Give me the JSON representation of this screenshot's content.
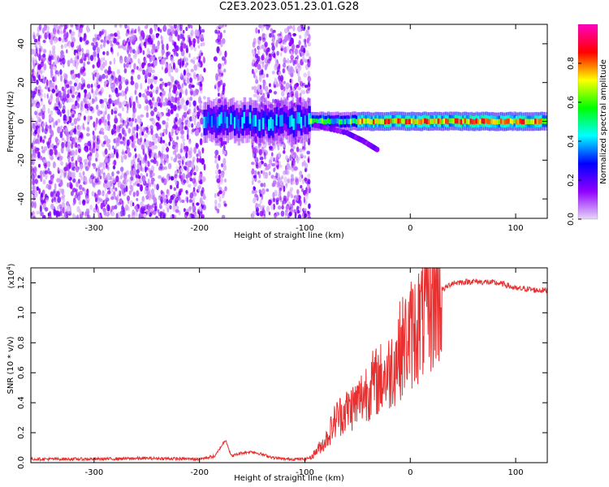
{
  "title": "C2E3.2023.051.23.01.G28",
  "chart_data": [
    {
      "type": "heatmap",
      "name": "spectrogram",
      "xlabel": "Height of straight line (km)",
      "ylabel": "Frequency (Hz)",
      "xlim": [
        -360,
        130
      ],
      "ylim": [
        -50,
        50
      ],
      "xticks": [
        -300,
        -200,
        -100,
        0,
        100
      ],
      "yticks": [
        -40,
        -20,
        0,
        20,
        40
      ],
      "colorbar": {
        "label": "Normalized spectral amplitude",
        "range": [
          0.0,
          1.0
        ],
        "ticks": [
          0.0,
          0.2,
          0.4,
          0.6,
          0.8
        ],
        "colors": [
          "#e8d8f8",
          "#9000ff",
          "#0000ff",
          "#00ffff",
          "#00ff00",
          "#ffff00",
          "#ff0000",
          "#ff00c0"
        ]
      },
      "features": {
        "noise_regions": [
          [
            -360,
            -195
          ],
          [
            -185,
            -175
          ],
          [
            -150,
            -95
          ]
        ],
        "signal_band": {
          "x_start": -195,
          "x_end": 130,
          "center_hz": 0,
          "half_width_hz": 3
        },
        "descending_trace": {
          "x": [
            -90,
            -60,
            -45,
            -30
          ],
          "y": [
            -2,
            -6,
            -10,
            -15
          ]
        }
      }
    },
    {
      "type": "line",
      "name": "snr",
      "xlabel": "Height of straight line (km)",
      "ylabel": "SNR (10 * v/v)",
      "exponent_label": "(x10",
      "exponent_power": "4",
      "exponent_close": ")",
      "xlim": [
        -360,
        130
      ],
      "ylim": [
        0,
        1.3
      ],
      "xticks": [
        -300,
        -200,
        -100,
        0,
        100
      ],
      "yticks": [
        0.0,
        0.2,
        0.4,
        0.6,
        0.8,
        1.0,
        1.2
      ],
      "ytick_labels": [
        "0.0",
        "0.2",
        "0.4",
        "0.6",
        "0.8",
        "1.0",
        "1.2"
      ],
      "color": "#e83030",
      "series": [
        {
          "x": [
            -360,
            -300,
            -250,
            -200,
            -185,
            -180,
            -175,
            -170,
            -160,
            -150,
            -140,
            -130,
            -120,
            -110,
            -100,
            -95,
            -80,
            -70,
            -60,
            -50,
            -40,
            -30,
            -20,
            -10,
            0,
            10,
            20,
            30,
            40,
            60,
            80,
            90,
            100,
            110,
            120,
            130
          ],
          "y": [
            0.02,
            0.02,
            0.025,
            0.02,
            0.04,
            0.1,
            0.15,
            0.04,
            0.06,
            0.07,
            0.05,
            0.03,
            0.02,
            0.02,
            0.02,
            0.03,
            0.15,
            0.3,
            0.35,
            0.4,
            0.5,
            0.55,
            0.6,
            0.75,
            0.85,
            0.95,
            1.05,
            1.15,
            1.2,
            1.21,
            1.2,
            1.19,
            1.16,
            1.16,
            1.15,
            1.15
          ]
        }
      ]
    }
  ]
}
